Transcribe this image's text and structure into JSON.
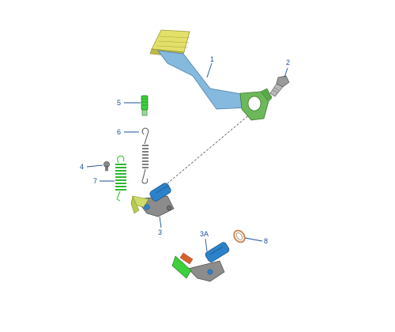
{
  "diagram": {
    "callouts": {
      "c1": "1",
      "c2": "2",
      "c3": "3",
      "c3a": "3A",
      "c4": "4",
      "c5": "5",
      "c6": "6",
      "c7": "7",
      "c8": "8"
    },
    "colors": {
      "callout": "#1a4f9c",
      "pedal_arm": "#86b9de",
      "pedal_pad": "#e3e06a",
      "clamp": "#6cb85a",
      "spring": "#3ecf3e",
      "shaft": "#2c82c9",
      "lever_plate": "#8c8c8c",
      "oring": "#c98a5a"
    }
  }
}
